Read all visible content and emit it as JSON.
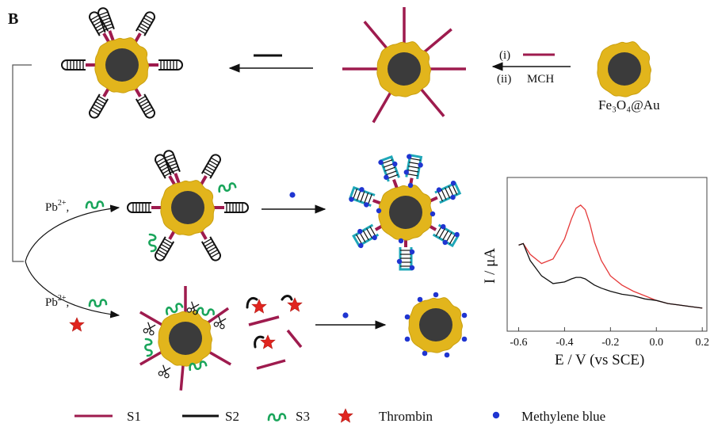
{
  "panel_label": "B",
  "colors": {
    "s1": "#9e1b4e",
    "s2": "#111111",
    "s3": "#1aa55b",
    "thrombin": "#e0251f",
    "mb": "#1f35d1",
    "shell": "#e2b51c",
    "core": "#3b3b3b",
    "curve_red": "#e53a3a",
    "curve_black": "#111111"
  },
  "icons": [
    "particle-icon",
    "strand-icon",
    "hairpin-icon",
    "scissors-icon",
    "star-icon",
    "dot-icon",
    "arrow-icon"
  ],
  "steps": {
    "i": "(i)",
    "ii": "(ii)",
    "mch": "MCH",
    "particle_label": "Fe₃O₄@Au",
    "pb_text": "Pb",
    "pb_sup": "2+",
    "pb_comma": ","
  },
  "legend": {
    "s1": "S1",
    "s2": "S2",
    "s3": "S3",
    "thrombin": "Thrombin",
    "mb": "Methylene blue"
  },
  "chart_data": {
    "type": "line",
    "xlabel": "E / V (vs SCE)",
    "ylabel": "I / μA",
    "xlim": [
      -0.65,
      0.22
    ],
    "ylim": [
      0,
      1
    ],
    "xticks": [
      -0.6,
      -0.4,
      -0.2,
      0.0,
      0.2
    ],
    "xtick_labels": [
      "-0.6",
      "-0.4",
      "-0.2",
      "0.0",
      "0.2"
    ],
    "grid": false,
    "series": [
      {
        "color": "red",
        "x": [
          -0.6,
          -0.58,
          -0.55,
          -0.5,
          -0.45,
          -0.4,
          -0.37,
          -0.35,
          -0.33,
          -0.31,
          -0.29,
          -0.27,
          -0.24,
          -0.2,
          -0.15,
          -0.1,
          -0.05,
          0.0,
          0.05,
          0.1,
          0.15,
          0.2
        ],
        "y": [
          0.56,
          0.57,
          0.5,
          0.44,
          0.47,
          0.6,
          0.73,
          0.8,
          0.82,
          0.79,
          0.7,
          0.58,
          0.46,
          0.36,
          0.3,
          0.26,
          0.23,
          0.2,
          0.18,
          0.17,
          0.16,
          0.15
        ]
      },
      {
        "color": "black",
        "x": [
          -0.6,
          -0.58,
          -0.55,
          -0.5,
          -0.45,
          -0.4,
          -0.37,
          -0.35,
          -0.33,
          -0.31,
          -0.29,
          -0.27,
          -0.24,
          -0.2,
          -0.15,
          -0.1,
          -0.05,
          0.0,
          0.05,
          0.1,
          0.15,
          0.2
        ],
        "y": [
          0.56,
          0.57,
          0.46,
          0.36,
          0.31,
          0.32,
          0.34,
          0.35,
          0.35,
          0.34,
          0.32,
          0.3,
          0.28,
          0.26,
          0.24,
          0.23,
          0.21,
          0.2,
          0.18,
          0.17,
          0.16,
          0.15
        ]
      }
    ]
  }
}
